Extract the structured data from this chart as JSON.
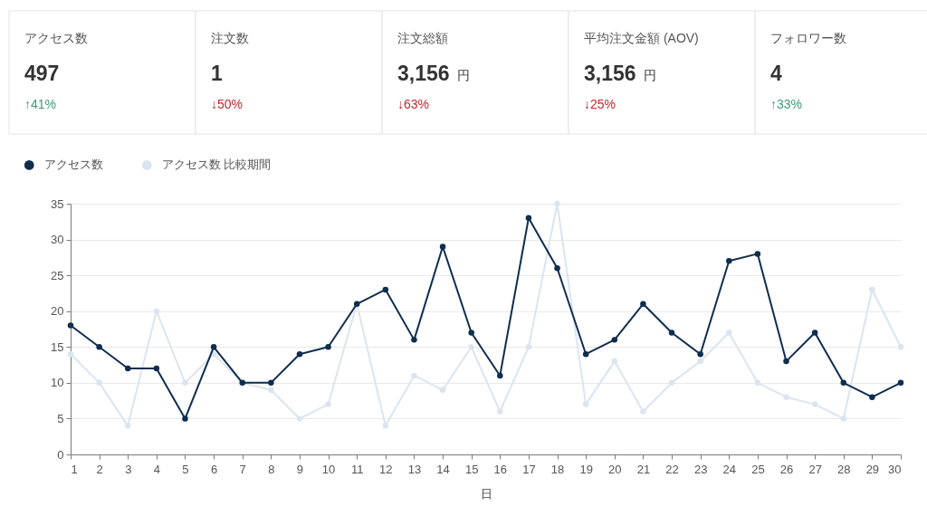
{
  "chart_data": [
    {
      "type": "other",
      "annotations": [
        "アクセス数",
        "497",
        "↑41%",
        "注文数",
        "1",
        "↓50%",
        "注文総額",
        "3,156 円",
        "↓63%",
        "平均注文金額 (AOV)",
        "3,156 円",
        "↓25%",
        "フォロワー数",
        "4",
        "↑33%"
      ],
      "colors": [
        "#3a9a78",
        "#c4262d",
        "#c4262d",
        "#c4262d",
        "#3a9a78"
      ]
    },
    {
      "type": "line",
      "x": [
        1,
        2,
        3,
        4,
        5,
        6,
        7,
        8,
        9,
        10,
        11,
        12,
        13,
        14,
        15,
        16,
        17,
        18,
        19,
        20,
        21,
        22,
        23,
        24,
        25,
        26,
        27,
        28,
        29,
        30
      ],
      "xlim": [
        1,
        30
      ],
      "xticks": [
        1,
        2,
        3,
        4,
        5,
        6,
        7,
        8,
        9,
        10,
        11,
        12,
        13,
        14,
        15,
        16,
        17,
        18,
        19,
        20,
        21,
        22,
        23,
        24,
        25,
        26,
        27,
        28,
        29,
        30
      ],
      "ylim": [
        0,
        35
      ],
      "yticks": [
        0,
        5,
        10,
        15,
        20,
        25,
        30,
        35
      ],
      "xlabel": "日",
      "grid": "y",
      "legend": "top left",
      "marker": "circle",
      "line_style": "solid",
      "series": [
        {
          "name": "アクセス数",
          "color": "#0f2d4f",
          "values": [
            18,
            15,
            12,
            12,
            5,
            15,
            10,
            10,
            14,
            15,
            21,
            23,
            16,
            29,
            17,
            11,
            33,
            26,
            14,
            16,
            21,
            17,
            14,
            27,
            28,
            13,
            17,
            10,
            8,
            10
          ]
        },
        {
          "name": "アクセス数 比較期間",
          "color": "#dbe5f0",
          "values": [
            14,
            10,
            4,
            20,
            10,
            14,
            10,
            9,
            5,
            7,
            21,
            4,
            11,
            9,
            15,
            6,
            15,
            35,
            7,
            13,
            6,
            10,
            13,
            17,
            10,
            8,
            7,
            5,
            23,
            15
          ]
        }
      ]
    }
  ]
}
